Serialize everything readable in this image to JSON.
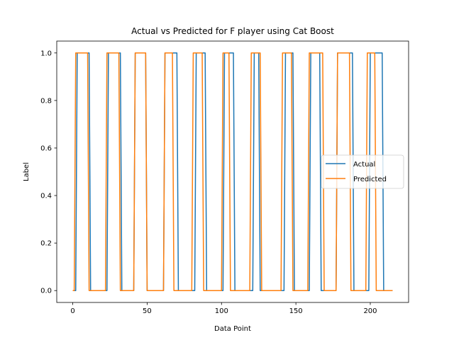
{
  "chart_data": {
    "type": "line",
    "title": "Actual vs Predicted for F player using Cat Boost",
    "xlabel": "Data Point",
    "ylabel": "Label",
    "xlim": [
      -10.75,
      225.75
    ],
    "ylim": [
      -0.05,
      1.05
    ],
    "xticks": [
      0,
      50,
      100,
      150,
      200
    ],
    "yticks": [
      0.0,
      0.2,
      0.4,
      0.6,
      0.8,
      1.0
    ],
    "xtick_labels": [
      "0",
      "50",
      "100",
      "150",
      "200"
    ],
    "ytick_labels": [
      "0.0",
      "0.2",
      "0.4",
      "0.6",
      "0.8",
      "1.0"
    ],
    "grid": false,
    "legend_position": "center-right",
    "series": [
      {
        "name": "Actual",
        "color": "#1f77b4",
        "x": [
          0,
          2,
          3,
          11,
          12,
          23,
          24,
          32,
          33,
          41,
          42,
          49,
          50,
          61,
          62,
          70,
          71,
          82,
          83,
          89,
          90,
          101,
          102,
          108,
          109,
          121,
          122,
          125,
          126,
          142,
          143,
          148,
          149,
          159,
          160,
          166,
          167,
          177,
          178,
          188,
          189,
          199,
          200,
          208,
          209,
          215
        ],
        "y": [
          0,
          0,
          1,
          1,
          0,
          0,
          1,
          1,
          0,
          0,
          1,
          1,
          0,
          0,
          1,
          1,
          0,
          0,
          1,
          1,
          0,
          0,
          1,
          1,
          0,
          0,
          1,
          1,
          0,
          0,
          1,
          1,
          0,
          0,
          1,
          1,
          0,
          0,
          1,
          1,
          0,
          0,
          1,
          1,
          0,
          0
        ]
      },
      {
        "name": "Predicted",
        "color": "#ff7f0e",
        "x": [
          0,
          1,
          2,
          10,
          11,
          22,
          23,
          31,
          32,
          41,
          42,
          49,
          50,
          61,
          62,
          67,
          68,
          80,
          81,
          87,
          88,
          100,
          101,
          105,
          106,
          119,
          120,
          126,
          127,
          140,
          141,
          147,
          148,
          158,
          159,
          168,
          169,
          177,
          178,
          186,
          187,
          197,
          198,
          203,
          204,
          215
        ],
        "y": [
          0,
          0,
          1,
          1,
          0,
          0,
          1,
          1,
          0,
          0,
          1,
          1,
          0,
          0,
          1,
          1,
          0,
          0,
          1,
          1,
          0,
          0,
          1,
          1,
          0,
          0,
          1,
          1,
          0,
          0,
          1,
          1,
          0,
          0,
          1,
          1,
          0,
          0,
          1,
          1,
          0,
          0,
          1,
          1,
          0,
          0
        ]
      }
    ]
  }
}
